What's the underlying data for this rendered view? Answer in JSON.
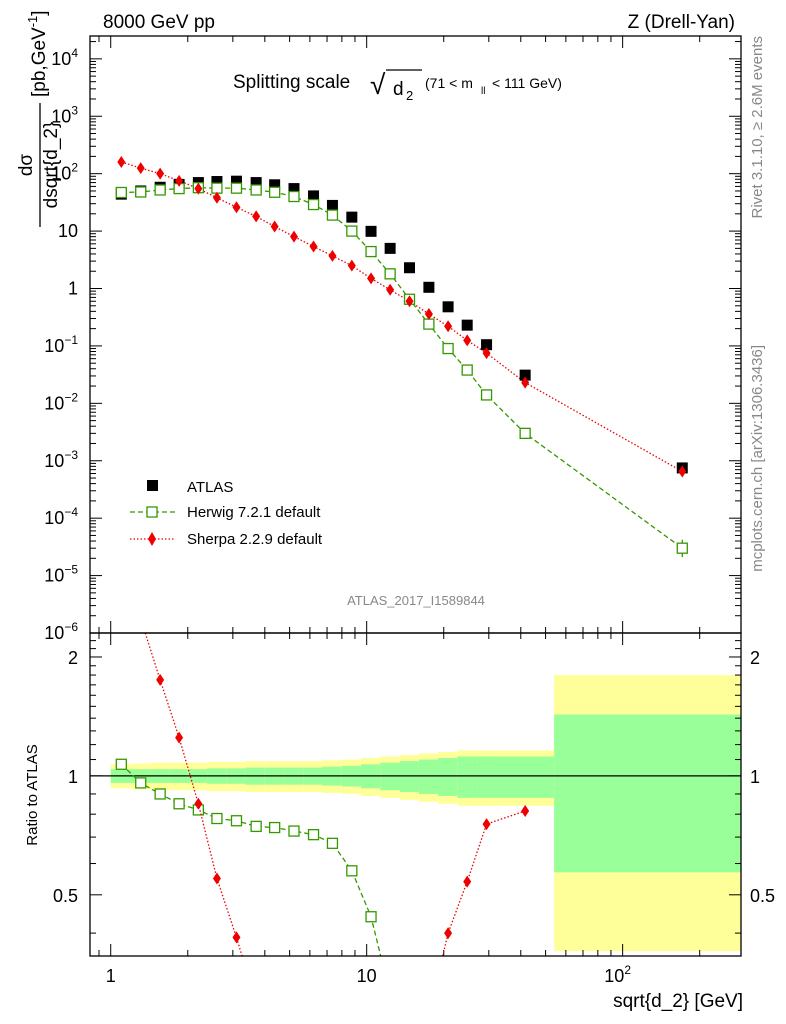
{
  "header": {
    "left": "8000 GeV pp",
    "right": "Z (Drell-Yan)"
  },
  "title": {
    "main": "Splitting scale",
    "sqrt_symbol": "√",
    "var": "d",
    "var_sub": "2",
    "cut_open": "(71 < m",
    "cut_sub": "ll",
    "cut_close": " < 111 GeV)"
  },
  "ylabel": {
    "numerator": "dσ",
    "denominator": "dsqrt{d_2}",
    "units": "[pb,GeV",
    "units_exp": "-1",
    "units_close": "]"
  },
  "ratio_ylabel": "Ratio to ATLAS",
  "xlabel": "sqrt{d_2} [GeV]",
  "side_top": "Rivet 3.1.10, ≥ 2.6M events",
  "side_bottom": "mcplots.cern.ch [arXiv:1306.3436]",
  "watermark": "ATLAS_2017_I1589844",
  "legend": {
    "atlas": "ATLAS",
    "herwig": "Herwig 7.2.1 default",
    "sherpa": "Sherpa 2.2.9 default"
  },
  "colors": {
    "atlas": "#000000",
    "herwig": "#339900",
    "sherpa": "#ee0000",
    "band_inner": "#99ff99",
    "band_outer": "#ffff99"
  },
  "chart_data": {
    "type": "scatter",
    "x_scale": "log",
    "y_scale": "log",
    "xlim": [
      0.83,
      290
    ],
    "ylim": [
      1e-06,
      25000
    ],
    "ratio_ylim": [
      0.35,
      2.3
    ],
    "x_ticks": [
      {
        "value": 1,
        "label": "1"
      },
      {
        "value": 10,
        "label": "10"
      },
      {
        "value": 100,
        "label": "10",
        "exp": "2"
      }
    ],
    "y_ticks": [
      {
        "value": 1e-06,
        "mant": "10",
        "exp": "−6"
      },
      {
        "value": 1e-05,
        "mant": "10",
        "exp": "−5"
      },
      {
        "value": 0.0001,
        "mant": "10",
        "exp": "−4"
      },
      {
        "value": 0.001,
        "mant": "10",
        "exp": "−3"
      },
      {
        "value": 0.01,
        "mant": "10",
        "exp": "−2"
      },
      {
        "value": 0.1,
        "mant": "10",
        "exp": "−1"
      },
      {
        "value": 1,
        "mant": "1",
        "exp": ""
      },
      {
        "value": 10,
        "mant": "10",
        "exp": ""
      },
      {
        "value": 100,
        "mant": "10",
        "exp": "2"
      },
      {
        "value": 1000,
        "mant": "10",
        "exp": "3"
      },
      {
        "value": 10000,
        "mant": "10",
        "exp": "4"
      }
    ],
    "ratio_ticks": [
      {
        "value": 0.5,
        "label": "0.5"
      },
      {
        "value": 1,
        "label": "1"
      },
      {
        "value": 2,
        "label": "2"
      }
    ],
    "bins": [
      [
        1.0,
        1.2
      ],
      [
        1.2,
        1.43
      ],
      [
        1.43,
        1.7
      ],
      [
        1.7,
        2.0
      ],
      [
        2.0,
        2.38
      ],
      [
        2.38,
        2.83
      ],
      [
        2.83,
        3.36
      ],
      [
        3.36,
        4.0
      ],
      [
        4.0,
        4.75
      ],
      [
        4.75,
        5.65
      ],
      [
        5.65,
        6.72
      ],
      [
        6.72,
        8.0
      ],
      [
        8.0,
        9.5
      ],
      [
        9.5,
        11.3
      ],
      [
        11.3,
        13.5
      ],
      [
        13.5,
        16.0
      ],
      [
        16.0,
        19.0
      ],
      [
        19.0,
        22.6
      ],
      [
        22.6,
        27.0
      ],
      [
        27.0,
        32.0
      ],
      [
        32.0,
        54.0
      ],
      [
        54.0,
        290.0
      ]
    ],
    "x": [
      1.1,
      1.31,
      1.56,
      1.85,
      2.2,
      2.6,
      3.1,
      3.7,
      4.37,
      5.2,
      6.2,
      7.35,
      8.75,
      10.4,
      12.35,
      14.7,
      17.5,
      20.8,
      24.7,
      29.4,
      41.6,
      171
    ],
    "series": [
      {
        "name": "ATLAS",
        "values": [
          44,
          50,
          58,
          65,
          70,
          73,
          74,
          70,
          64,
          55,
          41,
          28,
          17.5,
          9.9,
          5.0,
          2.3,
          1.05,
          0.48,
          0.23,
          0.105,
          0.031,
          0.00075
        ]
      },
      {
        "name": "Herwig 7.2.1 default",
        "values": [
          47,
          48,
          52,
          55,
          57,
          56,
          56,
          52,
          47.5,
          40,
          29,
          19,
          10,
          4.4,
          1.8,
          0.65,
          0.24,
          0.09,
          0.038,
          0.014,
          0.003,
          3e-05
        ],
        "ratio": [
          1.07,
          0.96,
          0.9,
          0.85,
          0.82,
          0.78,
          0.77,
          0.745,
          0.74,
          0.725,
          0.71,
          0.675,
          0.575,
          0.44,
          null,
          null,
          null,
          null,
          null,
          null,
          null,
          null
        ]
      },
      {
        "name": "Sherpa 2.2.9 default",
        "values": [
          160,
          125,
          100,
          75,
          55,
          38,
          26,
          18,
          12,
          8,
          5.4,
          3.7,
          2.5,
          1.5,
          0.95,
          0.6,
          0.36,
          0.22,
          0.125,
          0.075,
          0.023,
          0.00065
        ],
        "ratio": [
          null,
          null,
          1.75,
          1.25,
          0.85,
          0.55,
          0.39,
          null,
          null,
          null,
          null,
          null,
          null,
          null,
          null,
          null,
          null,
          null,
          0.54,
          0.755,
          0.815,
          null
        ]
      }
    ],
    "atlas_band_inner": [
      0.04,
      0.04,
      0.04,
      0.04,
      0.04,
      0.045,
      0.045,
      0.05,
      0.05,
      0.05,
      0.05,
      0.055,
      0.06,
      0.07,
      0.08,
      0.09,
      0.1,
      0.11,
      0.12,
      0.12,
      0.12,
      0.43
    ],
    "atlas_band_outer": [
      0.07,
      0.075,
      0.08,
      0.08,
      0.08,
      0.085,
      0.085,
      0.09,
      0.09,
      0.09,
      0.09,
      0.095,
      0.1,
      0.11,
      0.12,
      0.13,
      0.14,
      0.15,
      0.16,
      0.16,
      0.16,
      0.8
    ]
  }
}
